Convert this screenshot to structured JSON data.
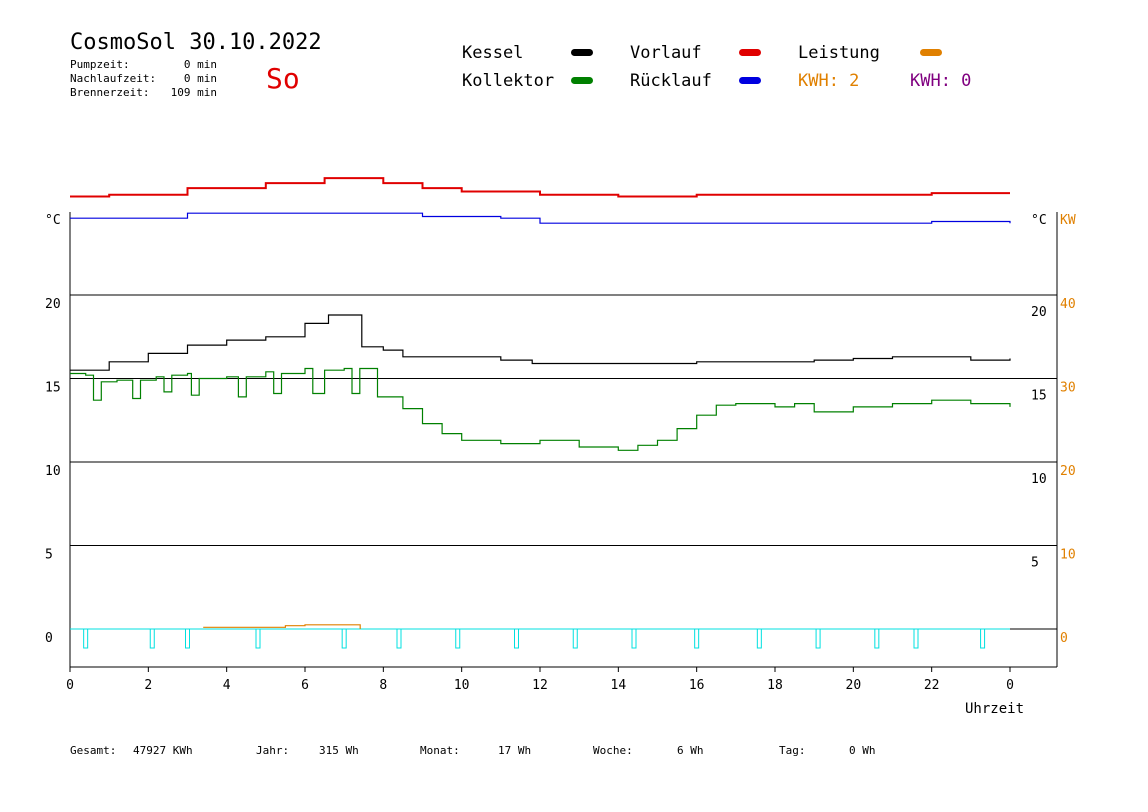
{
  "header": {
    "title": "CosmoSol 30.10.2022",
    "weekday": "So",
    "stats": [
      {
        "label": "Pumpzeit:",
        "value": "0 min"
      },
      {
        "label": "Nachlaufzeit:",
        "value": "0 min"
      },
      {
        "label": "Brennerzeit:",
        "value": "109 min"
      }
    ]
  },
  "legend": {
    "kessel": "Kessel",
    "kollektor": "Kollektor",
    "vorlauf": "Vorlauf",
    "ruecklauf": "Rücklauf",
    "leistung": "Leistung",
    "kwh1": "KWH: 2",
    "kwh2": "KWH: 0"
  },
  "colors": {
    "kessel": "#000000",
    "kollektor": "#008000",
    "vorlauf": "#e00000",
    "ruecklauf": "#0000e0",
    "leistung": "#e08000",
    "kwh2": "#800080",
    "pump": "#00e0e0"
  },
  "footer": {
    "gesamt_label": "Gesamt:",
    "gesamt_value": "47927 KWh",
    "jahr_label": "Jahr:",
    "jahr_value": "315 Wh",
    "monat_label": "Monat:",
    "monat_value": "17 Wh",
    "woche_label": "Woche:",
    "woche_value": "6 Wh",
    "tag_label": "Tag:",
    "tag_value": "0 Wh"
  },
  "chart_data": {
    "type": "line",
    "xlabel": "Uhrzeit",
    "x_ticks": [
      "0",
      "2",
      "4",
      "6",
      "8",
      "10",
      "12",
      "14",
      "16",
      "18",
      "20",
      "22",
      "0"
    ],
    "xlim": [
      0,
      24
    ],
    "left_axis": {
      "unit": "°C",
      "ticks": [
        "20",
        "15",
        "10",
        "5",
        "0"
      ],
      "ylim": [
        0,
        20
      ]
    },
    "right_axis": {
      "unit": "°C",
      "ticks": [
        "20",
        "15",
        "10",
        "5"
      ]
    },
    "right_axis2": {
      "unit": "KW",
      "ticks": [
        "40",
        "30",
        "20",
        "10",
        "0"
      ]
    },
    "series": [
      {
        "name": "Kessel",
        "color_key": "kessel",
        "points": [
          [
            0,
            15.5
          ],
          [
            1,
            16.0
          ],
          [
            2,
            16.5
          ],
          [
            3,
            17.0
          ],
          [
            4,
            17.3
          ],
          [
            5,
            17.5
          ],
          [
            6,
            18.3
          ],
          [
            6.6,
            18.8
          ],
          [
            7.3,
            18.8
          ],
          [
            7.45,
            16.9
          ],
          [
            8,
            16.7
          ],
          [
            8.5,
            16.3
          ],
          [
            10,
            16.3
          ],
          [
            11,
            16.1
          ],
          [
            11.8,
            15.9
          ],
          [
            13,
            15.9
          ],
          [
            15,
            15.9
          ],
          [
            16,
            16.0
          ],
          [
            17.5,
            16.0
          ],
          [
            19,
            16.1
          ],
          [
            20,
            16.2
          ],
          [
            21,
            16.3
          ],
          [
            22,
            16.3
          ],
          [
            23,
            16.1
          ],
          [
            24,
            16.2
          ]
        ]
      },
      {
        "name": "Kollektor",
        "color_key": "kollektor",
        "points": [
          [
            0,
            15.3
          ],
          [
            0.4,
            15.2
          ],
          [
            0.6,
            13.7
          ],
          [
            0.8,
            14.8
          ],
          [
            1.2,
            14.9
          ],
          [
            1.6,
            13.8
          ],
          [
            1.8,
            14.9
          ],
          [
            2.2,
            15.1
          ],
          [
            2.4,
            14.2
          ],
          [
            2.6,
            15.2
          ],
          [
            3,
            15.3
          ],
          [
            3.1,
            14.0
          ],
          [
            3.3,
            15.0
          ],
          [
            4,
            15.1
          ],
          [
            4.3,
            13.9
          ],
          [
            4.5,
            15.1
          ],
          [
            5,
            15.4
          ],
          [
            5.2,
            14.1
          ],
          [
            5.4,
            15.3
          ],
          [
            6,
            15.6
          ],
          [
            6.2,
            14.1
          ],
          [
            6.5,
            15.5
          ],
          [
            7,
            15.6
          ],
          [
            7.2,
            14.1
          ],
          [
            7.4,
            15.6
          ],
          [
            7.8,
            15.6
          ],
          [
            7.85,
            13.9
          ],
          [
            8.5,
            13.2
          ],
          [
            9,
            12.3
          ],
          [
            9.5,
            11.7
          ],
          [
            10,
            11.3
          ],
          [
            11,
            11.1
          ],
          [
            12,
            11.3
          ],
          [
            13,
            10.9
          ],
          [
            14,
            10.7
          ],
          [
            14.5,
            11.0
          ],
          [
            15,
            11.3
          ],
          [
            15.5,
            12.0
          ],
          [
            16,
            12.8
          ],
          [
            16.5,
            13.4
          ],
          [
            17,
            13.5
          ],
          [
            18,
            13.3
          ],
          [
            18.5,
            13.5
          ],
          [
            19,
            13.0
          ],
          [
            20,
            13.3
          ],
          [
            21,
            13.5
          ],
          [
            22,
            13.7
          ],
          [
            23,
            13.5
          ],
          [
            24,
            13.3
          ]
        ]
      },
      {
        "name": "Vorlauf",
        "color_key": "vorlauf",
        "points": [
          [
            0,
            25.9
          ],
          [
            1,
            26.0
          ],
          [
            3,
            26.4
          ],
          [
            5,
            26.7
          ],
          [
            6.5,
            27.0
          ],
          [
            7.5,
            27.0
          ],
          [
            8,
            26.7
          ],
          [
            9,
            26.4
          ],
          [
            10,
            26.2
          ],
          [
            12,
            26.0
          ],
          [
            14,
            25.9
          ],
          [
            16,
            26.0
          ],
          [
            18,
            26.0
          ],
          [
            20,
            26.0
          ],
          [
            22,
            26.1
          ],
          [
            24,
            26.1
          ]
        ]
      },
      {
        "name": "Rücklauf",
        "color_key": "ruecklauf",
        "points": [
          [
            0,
            24.6
          ],
          [
            3,
            24.9
          ],
          [
            6,
            24.9
          ],
          [
            8,
            24.9
          ],
          [
            9,
            24.7
          ],
          [
            11,
            24.6
          ],
          [
            12,
            24.3
          ],
          [
            14,
            24.3
          ],
          [
            16,
            24.3
          ],
          [
            18,
            24.3
          ],
          [
            20,
            24.3
          ],
          [
            22,
            24.4
          ],
          [
            24,
            24.3
          ]
        ]
      },
      {
        "name": "Leistung",
        "color_key": "leistung",
        "points": [
          [
            3.4,
            0.1
          ],
          [
            5.5,
            0.2
          ],
          [
            6,
            0.25
          ],
          [
            7.4,
            0.25
          ],
          [
            7.41,
            0
          ]
        ]
      }
    ],
    "pump_pulses": [
      0.4,
      2.1,
      3.0,
      4.8,
      7.0,
      8.4,
      9.9,
      11.4,
      12.9,
      14.4,
      16.0,
      17.6,
      19.1,
      20.6,
      21.6,
      23.3
    ]
  }
}
